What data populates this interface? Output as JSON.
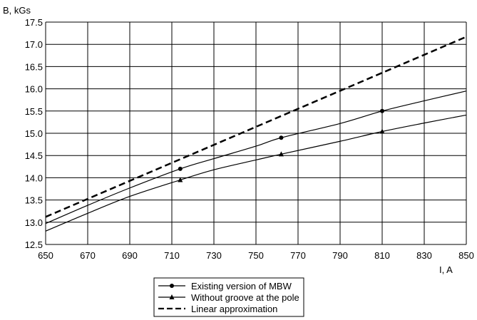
{
  "chart_data": {
    "type": "line",
    "xlabel": "I, A",
    "ylabel": "B, kGs",
    "xlim": [
      650,
      850
    ],
    "ylim": [
      12.5,
      17.5
    ],
    "x_ticks": [
      "650",
      "670",
      "690",
      "710",
      "730",
      "750",
      "770",
      "790",
      "810",
      "830",
      "850"
    ],
    "y_ticks": [
      "12.5",
      "13.0",
      "13.5",
      "14.0",
      "14.5",
      "15.0",
      "15.5",
      "16.0",
      "16.5",
      "17.0",
      "17.5"
    ],
    "grid": true,
    "legend_position": "bottom-center",
    "series": [
      {
        "name": "Existing version of MBW",
        "marker": "circle",
        "line": "solid",
        "curve": [
          [
            650,
            12.97
          ],
          [
            670,
            13.38
          ],
          [
            690,
            13.77
          ],
          [
            714,
            14.2
          ],
          [
            730,
            14.43
          ],
          [
            750,
            14.71
          ],
          [
            762,
            14.9
          ],
          [
            790,
            15.22
          ],
          [
            810,
            15.5
          ],
          [
            830,
            15.73
          ],
          [
            850,
            15.95
          ]
        ],
        "points": [
          [
            714,
            14.2
          ],
          [
            762,
            14.9
          ],
          [
            810,
            15.5
          ]
        ]
      },
      {
        "name": "Without groove at the pole",
        "marker": "triangle",
        "line": "solid",
        "curve": [
          [
            650,
            12.8
          ],
          [
            670,
            13.2
          ],
          [
            690,
            13.58
          ],
          [
            714,
            13.95
          ],
          [
            730,
            14.18
          ],
          [
            750,
            14.4
          ],
          [
            762,
            14.53
          ],
          [
            790,
            14.82
          ],
          [
            810,
            15.04
          ],
          [
            830,
            15.23
          ],
          [
            850,
            15.41
          ]
        ],
        "points": [
          [
            714,
            13.95
          ],
          [
            762,
            14.53
          ],
          [
            810,
            15.04
          ]
        ]
      },
      {
        "name": "Linear approximation",
        "marker": "none",
        "line": "dashed",
        "curve": [
          [
            650,
            13.12
          ],
          [
            850,
            17.17
          ]
        ],
        "points": []
      }
    ]
  }
}
